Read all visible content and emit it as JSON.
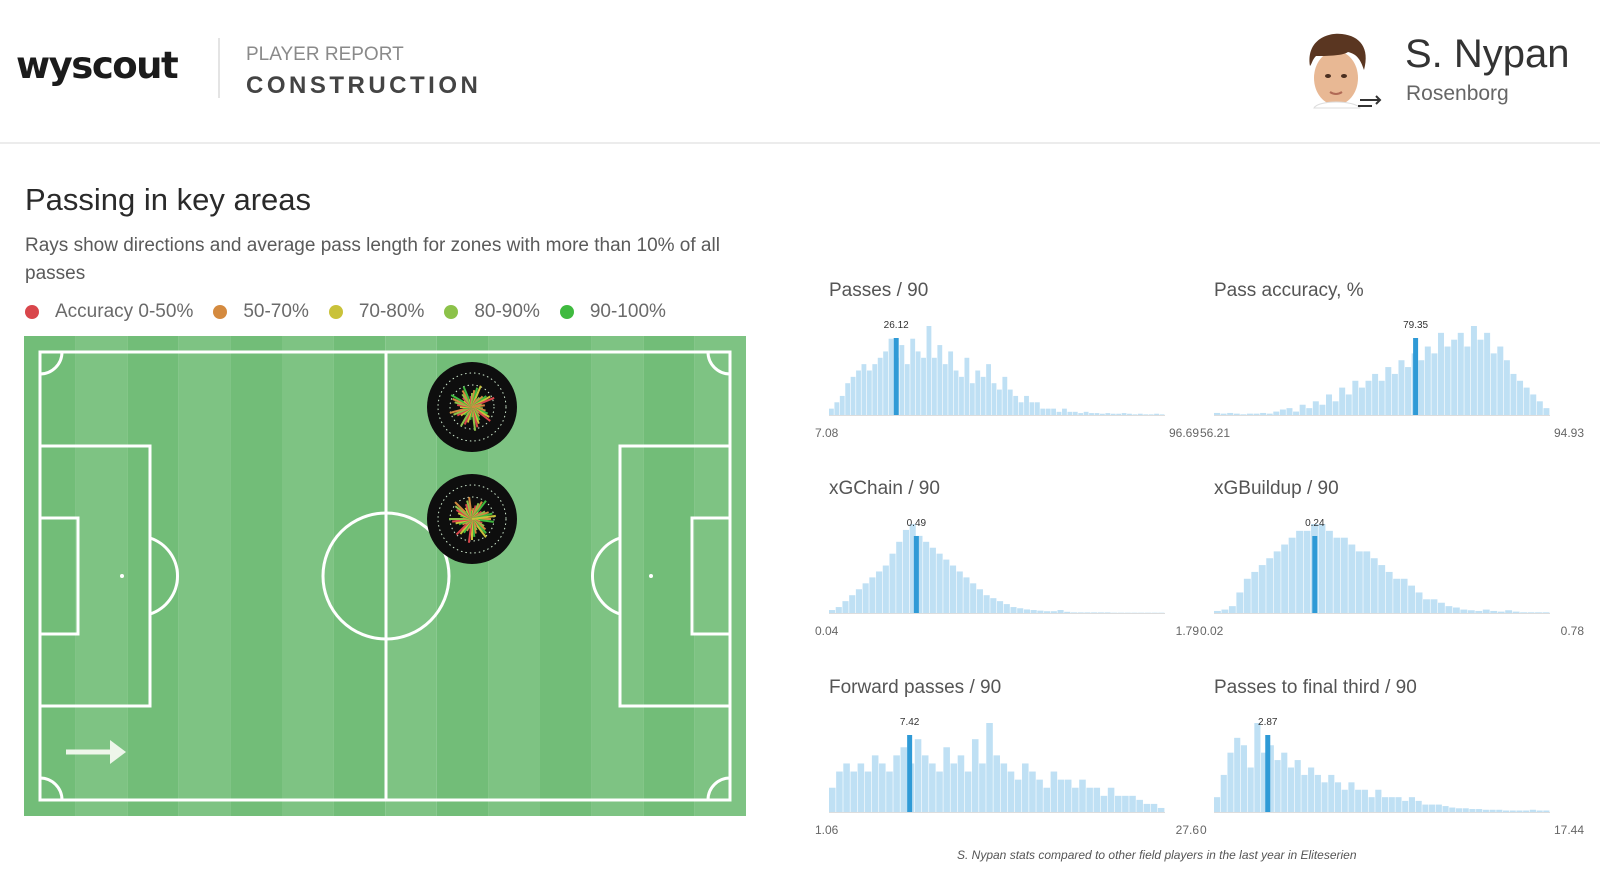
{
  "header": {
    "logo": "wyscout",
    "report_kicker": "PLAYER REPORT",
    "report_title": "CONSTRUCTION",
    "player_name": "S. Nypan",
    "club": "Rosenborg"
  },
  "section": {
    "title": "Passing in key areas",
    "description": "Rays show directions and average pass length for zones with more than 10% of all passes"
  },
  "legend": [
    {
      "label": "Accuracy 0-50%",
      "color": "#d9464b"
    },
    {
      "label": "50-70%",
      "color": "#d48a3f"
    },
    {
      "label": "70-80%",
      "color": "#c9c23a"
    },
    {
      "label": "80-90%",
      "color": "#8cc24a"
    },
    {
      "label": "90-100%",
      "color": "#3fba3f"
    }
  ],
  "pitch": {
    "zones": [
      {
        "name": "zone-upper",
        "dots": "zone"
      },
      {
        "name": "zone-lower",
        "dots": "zone"
      }
    ]
  },
  "chart_data": [
    {
      "type": "bar",
      "title": "Passes / 90",
      "x_min_label": "7.08",
      "x_max_label": "96.69",
      "player_value_label": "26.12",
      "player_position": 0.2,
      "colors": {
        "bar": "#bfe0f4",
        "highlight": "#2f9ad6"
      },
      "values": [
        1,
        2,
        3,
        5,
        6,
        7,
        8,
        7,
        8,
        9,
        10,
        12,
        9,
        11,
        8,
        12,
        10,
        9,
        14,
        9,
        11,
        8,
        10,
        7,
        6,
        9,
        5,
        7,
        6,
        8,
        5,
        4,
        6,
        4,
        3,
        2,
        3,
        2,
        2,
        1,
        1,
        1,
        0.5,
        1,
        0.5,
        0.5,
        0.3,
        0.5,
        0.3,
        0.3,
        0.2,
        0.3,
        0.2,
        0.2,
        0.3,
        0.2,
        0.1,
        0.2,
        0.1,
        0.1,
        0.2,
        0.1
      ]
    },
    {
      "type": "bar",
      "title": "Pass accuracy, %",
      "x_min_label": "56.21",
      "x_max_label": "94.93",
      "player_value_label": "79.35",
      "player_position": 0.6,
      "colors": {
        "bar": "#bfe0f4",
        "highlight": "#2f9ad6"
      },
      "values": [
        0.3,
        0.2,
        0.3,
        0.2,
        0.1,
        0.2,
        0.2,
        0.3,
        0.2,
        0.5,
        0.8,
        1,
        0.5,
        1.5,
        1,
        2,
        1.5,
        3,
        2,
        4,
        3,
        5,
        4,
        5,
        6,
        5,
        7,
        6,
        8,
        7,
        9,
        8,
        10,
        9,
        12,
        10,
        11,
        12,
        10,
        13,
        11,
        12,
        9,
        10,
        8,
        6,
        5,
        4,
        3,
        2,
        1
      ]
    },
    {
      "type": "bar",
      "title": "xGChain / 90",
      "x_min_label": "0.04",
      "x_max_label": "1.79",
      "player_value_label": "0.49",
      "player_position": 0.26,
      "colors": {
        "bar": "#bfe0f4",
        "highlight": "#2f9ad6"
      },
      "values": [
        0.5,
        1,
        2,
        3,
        4,
        5,
        6,
        7,
        8,
        10,
        12,
        14,
        15,
        13,
        12,
        11,
        10,
        9,
        8,
        7,
        6,
        5,
        4,
        3,
        2.5,
        2,
        1.5,
        1,
        0.8,
        0.6,
        0.5,
        0.4,
        0.3,
        0.3,
        0.5,
        0.2,
        0.1,
        0.1,
        0.1,
        0.1,
        0.1,
        0.1,
        0.05,
        0.05,
        0.05,
        0.05,
        0.05,
        0.05,
        0.05,
        0.05
      ]
    },
    {
      "type": "bar",
      "title": "xGBuildup / 90",
      "x_min_label": "0.02",
      "x_max_label": "0.78",
      "player_value_label": "0.24",
      "player_position": 0.3,
      "colors": {
        "bar": "#bfe0f4",
        "highlight": "#2f9ad6"
      },
      "values": [
        0.3,
        0.5,
        1,
        3,
        5,
        6,
        7,
        8,
        9,
        10,
        11,
        12,
        12,
        13,
        13,
        12,
        11,
        11,
        10,
        9,
        9,
        8,
        7,
        6,
        5,
        5,
        4,
        3,
        2,
        2,
        1.5,
        1,
        0.8,
        0.5,
        0.4,
        0.3,
        0.5,
        0.3,
        0.2,
        0.4,
        0.2,
        0.1,
        0.1,
        0.1,
        0.1
      ]
    },
    {
      "type": "bar",
      "title": "Forward passes / 90",
      "x_min_label": "1.06",
      "x_max_label": "27.6",
      "player_value_label": "7.42",
      "player_position": 0.24,
      "colors": {
        "bar": "#bfe0f4",
        "highlight": "#2f9ad6"
      },
      "values": [
        3,
        5,
        6,
        5,
        6,
        5,
        7,
        6,
        5,
        7,
        8,
        6,
        9,
        7,
        6,
        5,
        8,
        6,
        7,
        5,
        9,
        6,
        11,
        7,
        6,
        5,
        4,
        6,
        5,
        4,
        3,
        5,
        4,
        4,
        3,
        4,
        3,
        3,
        2,
        3,
        2,
        2,
        2,
        1.5,
        1,
        1,
        0.5
      ]
    },
    {
      "type": "bar",
      "title": "Passes to final third / 90",
      "x_min_label": "0",
      "x_max_label": "17.44",
      "player_value_label": "2.87",
      "player_position": 0.16,
      "colors": {
        "bar": "#bfe0f4",
        "highlight": "#2f9ad6"
      },
      "values": [
        2,
        5,
        8,
        10,
        9,
        6,
        12,
        8,
        9,
        7,
        8,
        6,
        7,
        5,
        6,
        5,
        4,
        5,
        4,
        3,
        4,
        3,
        3,
        2,
        3,
        2,
        2,
        2,
        1.5,
        2,
        1.5,
        1,
        1,
        1,
        0.8,
        0.6,
        0.5,
        0.5,
        0.4,
        0.4,
        0.3,
        0.3,
        0.3,
        0.2,
        0.2,
        0.2,
        0.2,
        0.3,
        0.2,
        0.2
      ]
    }
  ],
  "footnote": "S. Nypan stats compared to other field players in the last year in Eliteserien"
}
